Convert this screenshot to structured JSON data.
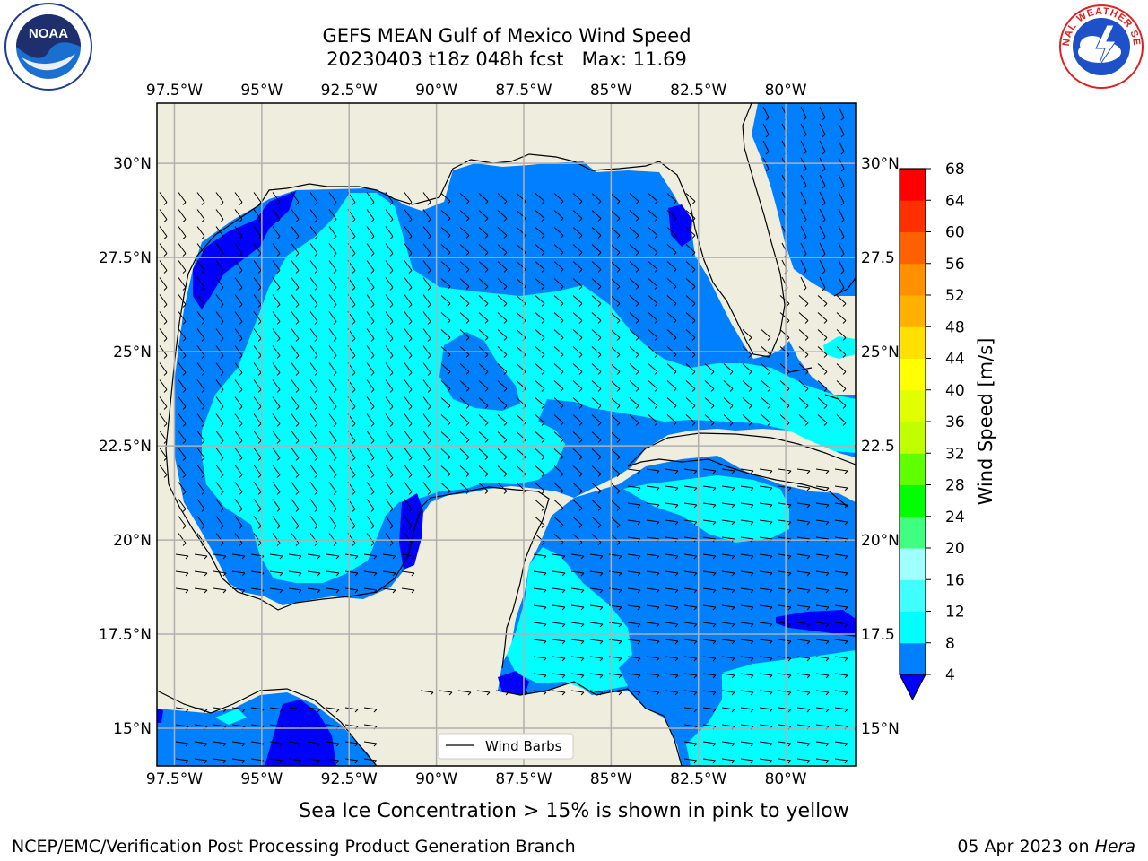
{
  "title": {
    "line1": "GEFS MEAN Gulf of Mexico Wind Speed",
    "line2": "20230403 t18z 048h fcst   Max: 11.69"
  },
  "logos": {
    "noaa": {
      "icon": "noaa-logo",
      "text": "NOAA",
      "ring_text": "NATIONAL OCEANIC AND ATMOSPHERIC ADMINISTRATION • U.S. DEPARTMENT OF COMMERCE"
    },
    "nws": {
      "icon": "nws-logo",
      "ring_text": "NATIONAL WEATHER SERVICE"
    }
  },
  "map": {
    "lon_ticks": [
      "97.5°W",
      "95°W",
      "92.5°W",
      "90°W",
      "87.5°W",
      "85°W",
      "82.5°W",
      "80°W"
    ],
    "lon_values": [
      -97.5,
      -95,
      -92.5,
      -90,
      -87.5,
      -85,
      -82.5,
      -80
    ],
    "lat_ticks_left": [
      "30°N",
      "27.5°N",
      "25°N",
      "22.5°N",
      "20°N",
      "17.5°N",
      "15°N"
    ],
    "lat_ticks_right": [
      "30°N",
      "27.5",
      "25°N",
      "22.5",
      "20°N",
      "17.5",
      "15°N"
    ],
    "lat_values": [
      30,
      27.5,
      25,
      22.5,
      20,
      17.5,
      15
    ],
    "lon_range": [
      -98,
      -78
    ],
    "lat_range": [
      14,
      31.6
    ],
    "legend_label": "Wind Barbs",
    "colors": {
      "land": "#efedde",
      "grid": "#b0b0b0",
      "level_4_8": "#0080ff",
      "level_8_12": "#00ffff",
      "below_4": "#0000ff"
    }
  },
  "colorbar": {
    "label": "Wind Speed [m/s]",
    "ticks": [
      "4",
      "8",
      "12",
      "16",
      "20",
      "24",
      "28",
      "32",
      "36",
      "40",
      "44",
      "48",
      "52",
      "56",
      "60",
      "64",
      "68"
    ],
    "colors": [
      "#0080ff",
      "#00ffff",
      "#40ffff",
      "#a0ffff",
      "#40ff80",
      "#00ff00",
      "#60ff00",
      "#c0ff00",
      "#e0ff00",
      "#ffff00",
      "#ffe000",
      "#ffb000",
      "#ff9000",
      "#ff6000",
      "#ff3000",
      "#ff0000"
    ],
    "extend_color": "#0000ff"
  },
  "footer": {
    "sea_ice_note": "Sea Ice Concentration > 15% is shown in pink to yellow",
    "credit_left": "NCEP/EMC/Verification Post Processing Product Generation Branch",
    "date": "05 Apr 2023 on",
    "host": "Hera"
  }
}
